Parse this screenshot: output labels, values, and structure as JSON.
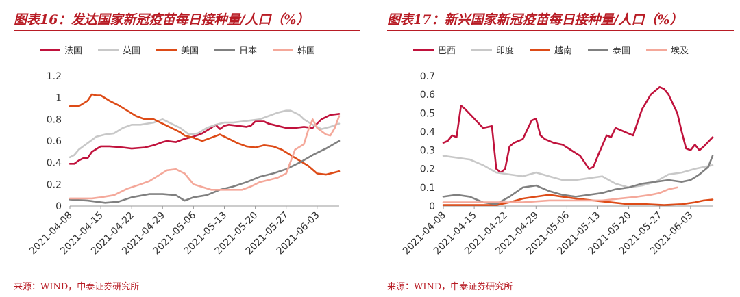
{
  "figures": [
    {
      "title": "图表16：发达国家新冠疫苗每日接种量/人口（%）",
      "source": "来源：WIND，中泰证券研究所"
    },
    {
      "title": "图表17：新兴国家新冠疫苗每日接种量/人口（%）",
      "source": "来源：WIND，中泰证券研究所"
    }
  ],
  "chart_data": [
    {
      "type": "line",
      "title": "图表16：发达国家新冠疫苗每日接种量/人口（%）",
      "x_ticks": [
        "2021-04-08",
        "2021-04-15",
        "2021-04-22",
        "2021-04-29",
        "2021-05-06",
        "2021-05-13",
        "2021-05-20",
        "2021-05-27",
        "2021-06-03"
      ],
      "x_start": "2021-04-08",
      "x_end": "2021-06-08",
      "ylim": [
        0,
        1.2
      ],
      "y_ticks": [
        "0",
        "0.2",
        "0.4",
        "0.6",
        "0.8",
        "1",
        "1.2"
      ],
      "legend": "top",
      "grid": false,
      "series": [
        {
          "name": "法国",
          "color": "#c0123c",
          "x": [
            "2021-04-08",
            "2021-04-09",
            "2021-04-10",
            "2021-04-11",
            "2021-04-12",
            "2021-04-13",
            "2021-04-15",
            "2021-04-17",
            "2021-04-20",
            "2021-04-22",
            "2021-04-25",
            "2021-04-27",
            "2021-04-29",
            "2021-04-30",
            "2021-05-02",
            "2021-05-04",
            "2021-05-06",
            "2021-05-08",
            "2021-05-10",
            "2021-05-11",
            "2021-05-12",
            "2021-05-13",
            "2021-05-14",
            "2021-05-16",
            "2021-05-18",
            "2021-05-19",
            "2021-05-20",
            "2021-05-22",
            "2021-05-23",
            "2021-05-25",
            "2021-05-27",
            "2021-05-29",
            "2021-05-31",
            "2021-06-02",
            "2021-06-04",
            "2021-06-06",
            "2021-06-08"
          ],
          "y": [
            0.39,
            0.39,
            0.42,
            0.44,
            0.44,
            0.5,
            0.55,
            0.55,
            0.54,
            0.53,
            0.54,
            0.56,
            0.59,
            0.6,
            0.59,
            0.62,
            0.64,
            0.67,
            0.72,
            0.75,
            0.71,
            0.74,
            0.75,
            0.74,
            0.73,
            0.74,
            0.78,
            0.78,
            0.76,
            0.74,
            0.72,
            0.72,
            0.73,
            0.72,
            0.8,
            0.84,
            0.85
          ]
        },
        {
          "name": "英国",
          "color": "#c8c8c8",
          "x": [
            "2021-04-08",
            "2021-04-09",
            "2021-04-10",
            "2021-04-12",
            "2021-04-14",
            "2021-04-16",
            "2021-04-18",
            "2021-04-20",
            "2021-04-22",
            "2021-04-24",
            "2021-04-27",
            "2021-04-29",
            "2021-05-01",
            "2021-05-03",
            "2021-05-05",
            "2021-05-07",
            "2021-05-09",
            "2021-05-11",
            "2021-05-13",
            "2021-05-15",
            "2021-05-17",
            "2021-05-19",
            "2021-05-21",
            "2021-05-23",
            "2021-05-25",
            "2021-05-27",
            "2021-05-28",
            "2021-05-30",
            "2021-05-31",
            "2021-06-02",
            "2021-06-04",
            "2021-06-06",
            "2021-06-08"
          ],
          "y": [
            0.45,
            0.47,
            0.52,
            0.58,
            0.64,
            0.66,
            0.67,
            0.72,
            0.75,
            0.75,
            0.77,
            0.8,
            0.76,
            0.72,
            0.66,
            0.67,
            0.72,
            0.75,
            0.77,
            0.77,
            0.78,
            0.79,
            0.8,
            0.83,
            0.86,
            0.88,
            0.88,
            0.84,
            0.8,
            0.75,
            0.71,
            0.73,
            0.76
          ]
        },
        {
          "name": "美国",
          "color": "#dd4b17",
          "x": [
            "2021-04-08",
            "2021-04-10",
            "2021-04-12",
            "2021-04-13",
            "2021-04-14",
            "2021-04-15",
            "2021-04-17",
            "2021-04-19",
            "2021-04-21",
            "2021-04-23",
            "2021-04-25",
            "2021-04-27",
            "2021-04-29",
            "2021-05-01",
            "2021-05-03",
            "2021-05-04",
            "2021-05-06",
            "2021-05-08",
            "2021-05-10",
            "2021-05-12",
            "2021-05-14",
            "2021-05-16",
            "2021-05-18",
            "2021-05-20",
            "2021-05-22",
            "2021-05-24",
            "2021-05-26",
            "2021-05-28",
            "2021-05-30",
            "2021-06-01",
            "2021-06-03",
            "2021-06-05",
            "2021-06-08"
          ],
          "y": [
            0.92,
            0.92,
            0.97,
            1.03,
            1.02,
            1.02,
            0.97,
            0.93,
            0.88,
            0.83,
            0.8,
            0.8,
            0.76,
            0.72,
            0.68,
            0.65,
            0.63,
            0.6,
            0.63,
            0.66,
            0.62,
            0.58,
            0.55,
            0.54,
            0.56,
            0.55,
            0.52,
            0.47,
            0.42,
            0.37,
            0.3,
            0.29,
            0.32
          ]
        },
        {
          "name": "日本",
          "color": "#808080",
          "x": [
            "2021-04-08",
            "2021-04-12",
            "2021-04-16",
            "2021-04-19",
            "2021-04-22",
            "2021-04-26",
            "2021-04-29",
            "2021-05-02",
            "2021-05-04",
            "2021-05-06",
            "2021-05-09",
            "2021-05-12",
            "2021-05-15",
            "2021-05-18",
            "2021-05-21",
            "2021-05-24",
            "2021-05-27",
            "2021-05-30",
            "2021-06-02",
            "2021-06-05",
            "2021-06-08"
          ],
          "y": [
            0.06,
            0.05,
            0.03,
            0.04,
            0.08,
            0.11,
            0.11,
            0.1,
            0.05,
            0.08,
            0.1,
            0.15,
            0.18,
            0.22,
            0.27,
            0.3,
            0.34,
            0.4,
            0.47,
            0.53,
            0.6
          ]
        },
        {
          "name": "韩国",
          "color": "#f4a89a",
          "x": [
            "2021-04-08",
            "2021-04-13",
            "2021-04-15",
            "2021-04-18",
            "2021-04-21",
            "2021-04-24",
            "2021-04-26",
            "2021-04-28",
            "2021-04-30",
            "2021-05-02",
            "2021-05-04",
            "2021-05-06",
            "2021-05-10",
            "2021-05-14",
            "2021-05-17",
            "2021-05-19",
            "2021-05-21",
            "2021-05-23",
            "2021-05-25",
            "2021-05-27",
            "2021-05-29",
            "2021-05-31",
            "2021-06-01",
            "2021-06-02",
            "2021-06-03",
            "2021-06-05",
            "2021-06-06",
            "2021-06-07",
            "2021-06-08"
          ],
          "y": [
            0.07,
            0.07,
            0.08,
            0.1,
            0.16,
            0.2,
            0.23,
            0.28,
            0.33,
            0.34,
            0.3,
            0.2,
            0.15,
            0.15,
            0.15,
            0.18,
            0.22,
            0.24,
            0.26,
            0.3,
            0.52,
            0.57,
            0.7,
            0.8,
            0.72,
            0.66,
            0.65,
            0.72,
            0.83
          ]
        }
      ]
    },
    {
      "type": "line",
      "title": "图表17：新兴国家新冠疫苗每日接种量/人口（%）",
      "x_ticks": [
        "2021-04-08",
        "2021-04-15",
        "2021-04-22",
        "2021-04-29",
        "2021-05-06",
        "2021-05-13",
        "2021-05-20",
        "2021-05-27",
        "2021-06-03"
      ],
      "x_start": "2021-04-08",
      "x_end": "2021-06-08",
      "ylim": [
        0,
        0.7
      ],
      "y_ticks": [
        "0",
        "0.1",
        "0.2",
        "0.3",
        "0.4",
        "0.5",
        "0.6",
        "0.7"
      ],
      "legend": "top",
      "grid": false,
      "series": [
        {
          "name": "巴西",
          "color": "#c0123c",
          "x": [
            "2021-04-08",
            "2021-04-09",
            "2021-04-10",
            "2021-04-11",
            "2021-04-12",
            "2021-04-13",
            "2021-04-15",
            "2021-04-17",
            "2021-04-19",
            "2021-04-20",
            "2021-04-21",
            "2021-04-22",
            "2021-04-23",
            "2021-04-24",
            "2021-04-26",
            "2021-04-28",
            "2021-04-29",
            "2021-04-30",
            "2021-05-01",
            "2021-05-03",
            "2021-05-05",
            "2021-05-07",
            "2021-05-09",
            "2021-05-11",
            "2021-05-12",
            "2021-05-13",
            "2021-05-15",
            "2021-05-16",
            "2021-05-17",
            "2021-05-19",
            "2021-05-21",
            "2021-05-23",
            "2021-05-25",
            "2021-05-27",
            "2021-05-28",
            "2021-05-29",
            "2021-05-31",
            "2021-06-01",
            "2021-06-02",
            "2021-06-03",
            "2021-06-04",
            "2021-06-05",
            "2021-06-06",
            "2021-06-08"
          ],
          "y": [
            0.34,
            0.35,
            0.38,
            0.37,
            0.54,
            0.52,
            0.47,
            0.42,
            0.43,
            0.2,
            0.18,
            0.2,
            0.32,
            0.34,
            0.36,
            0.46,
            0.47,
            0.38,
            0.36,
            0.34,
            0.33,
            0.3,
            0.27,
            0.2,
            0.21,
            0.27,
            0.38,
            0.37,
            0.42,
            0.4,
            0.38,
            0.52,
            0.6,
            0.64,
            0.63,
            0.6,
            0.5,
            0.4,
            0.31,
            0.3,
            0.33,
            0.3,
            0.32,
            0.37
          ]
        },
        {
          "name": "印度",
          "color": "#c8c8c8",
          "x": [
            "2021-04-08",
            "2021-04-11",
            "2021-04-14",
            "2021-04-17",
            "2021-04-20",
            "2021-04-23",
            "2021-04-26",
            "2021-04-29",
            "2021-05-02",
            "2021-05-05",
            "2021-05-08",
            "2021-05-11",
            "2021-05-14",
            "2021-05-17",
            "2021-05-20",
            "2021-05-23",
            "2021-05-26",
            "2021-05-29",
            "2021-06-01",
            "2021-06-04",
            "2021-06-08"
          ],
          "y": [
            0.27,
            0.26,
            0.25,
            0.22,
            0.18,
            0.17,
            0.16,
            0.18,
            0.16,
            0.14,
            0.14,
            0.15,
            0.16,
            0.12,
            0.1,
            0.11,
            0.13,
            0.17,
            0.18,
            0.2,
            0.22
          ]
        },
        {
          "name": "越南",
          "color": "#dd4b17",
          "x": [
            "2021-04-08",
            "2021-04-12",
            "2021-04-16",
            "2021-04-20",
            "2021-04-23",
            "2021-04-26",
            "2021-04-29",
            "2021-05-02",
            "2021-05-05",
            "2021-05-08",
            "2021-05-12",
            "2021-05-16",
            "2021-05-20",
            "2021-05-24",
            "2021-05-28",
            "2021-06-01",
            "2021-06-04",
            "2021-06-06",
            "2021-06-08"
          ],
          "y": [
            0.005,
            0.005,
            0.005,
            0.005,
            0.02,
            0.04,
            0.05,
            0.06,
            0.05,
            0.04,
            0.03,
            0.02,
            0.01,
            0.01,
            0.005,
            0.01,
            0.02,
            0.03,
            0.035
          ]
        },
        {
          "name": "泰国",
          "color": "#808080",
          "x": [
            "2021-04-08",
            "2021-04-11",
            "2021-04-14",
            "2021-04-17",
            "2021-04-20",
            "2021-04-23",
            "2021-04-26",
            "2021-04-29",
            "2021-05-02",
            "2021-05-05",
            "2021-05-08",
            "2021-05-11",
            "2021-05-14",
            "2021-05-17",
            "2021-05-20",
            "2021-05-23",
            "2021-05-26",
            "2021-05-29",
            "2021-06-01",
            "2021-06-03",
            "2021-06-05",
            "2021-06-07",
            "2021-06-08"
          ],
          "y": [
            0.05,
            0.06,
            0.05,
            0.02,
            0.01,
            0.05,
            0.1,
            0.11,
            0.08,
            0.06,
            0.05,
            0.06,
            0.07,
            0.09,
            0.1,
            0.12,
            0.13,
            0.14,
            0.13,
            0.14,
            0.17,
            0.21,
            0.27
          ]
        },
        {
          "name": "埃及",
          "color": "#f4a89a",
          "x": [
            "2021-04-08",
            "2021-04-14",
            "2021-04-20",
            "2021-04-26",
            "2021-05-02",
            "2021-05-08",
            "2021-05-14",
            "2021-05-18",
            "2021-05-22",
            "2021-05-25",
            "2021-05-27",
            "2021-05-29",
            "2021-05-31"
          ],
          "y": [
            0.02,
            0.02,
            0.02,
            0.02,
            0.03,
            0.03,
            0.03,
            0.04,
            0.05,
            0.06,
            0.07,
            0.09,
            0.1
          ]
        }
      ]
    }
  ]
}
